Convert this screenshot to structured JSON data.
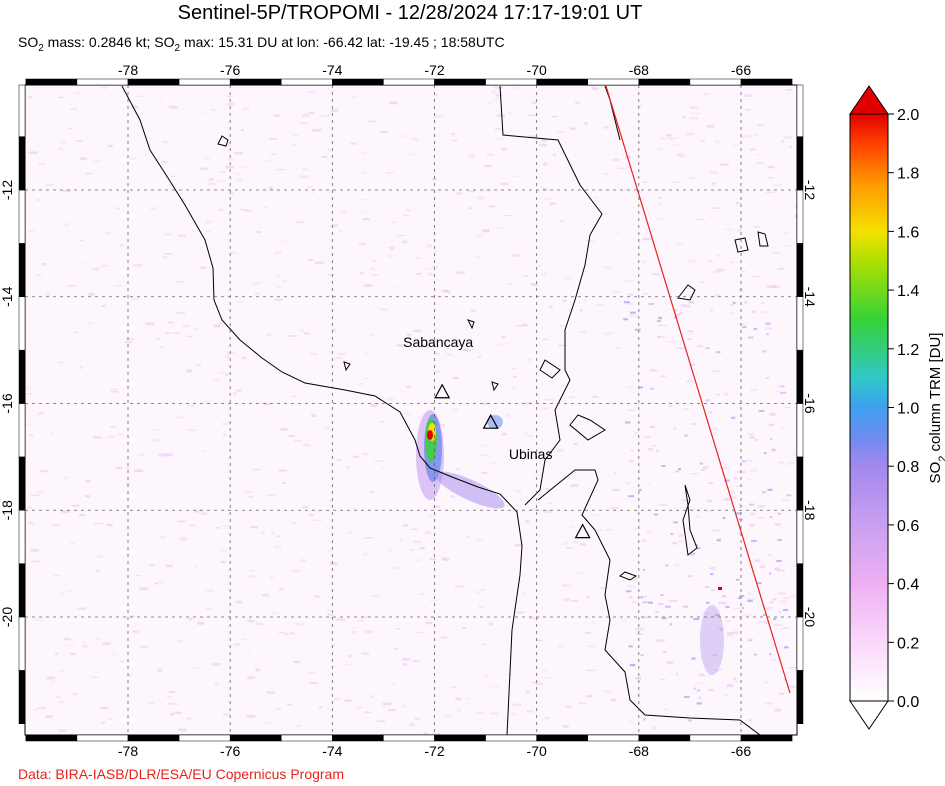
{
  "header": {
    "title": "Sentinel-5P/TROPOMI - 12/28/2024 17:17-19:01 UT",
    "subtitle_parts": [
      "SO",
      "2",
      " mass: 0.2846 kt; SO",
      "2",
      " max: 15.31 DU at lon: -66.42 lat: -19.45 ; 18:58UTC"
    ]
  },
  "footer": {
    "credit": "Data: BIRA-IASB/DLR/ESA/EU Copernicus Program"
  },
  "map": {
    "lon_ticks": [
      "-78",
      "-76",
      "-74",
      "-72",
      "-70",
      "-68",
      "-66"
    ],
    "lat_ticks": [
      "-12",
      "-14",
      "-16",
      "-18",
      "-20"
    ],
    "lon_range": [
      -80,
      -65
    ],
    "lat_range": [
      -22,
      -10
    ],
    "volcanoes": [
      {
        "name": "Sabancaya",
        "lon": -71.85,
        "lat": -15.78,
        "label": "Sabancaya"
      },
      {
        "name": "Ubinas",
        "lon": -70.9,
        "lat": -16.35,
        "label": "Ubinas"
      },
      {
        "name": "unlabeled",
        "lon": -69.1,
        "lat": -18.4,
        "label": ""
      }
    ]
  },
  "colorbar": {
    "axis_label_parts": [
      "SO",
      "2",
      " column TRM [DU]"
    ],
    "ticks": [
      "2.0",
      "1.8",
      "1.6",
      "1.4",
      "1.2",
      "1.0",
      "0.8",
      "0.6",
      "0.4",
      "0.2",
      "0.0"
    ],
    "colors": [
      "#e00000",
      "#ff4000",
      "#ff9a00",
      "#f5e000",
      "#aee000",
      "#36d236",
      "#30c8c8",
      "#3ea0f0",
      "#6e8cf0",
      "#a288ee",
      "#c8a0f0",
      "#eeb0f4",
      "#fad8fa",
      "#ffffff"
    ]
  },
  "plume": {
    "max_value_du": 15.31,
    "max_lon": -66.42,
    "max_lat": -19.45
  }
}
